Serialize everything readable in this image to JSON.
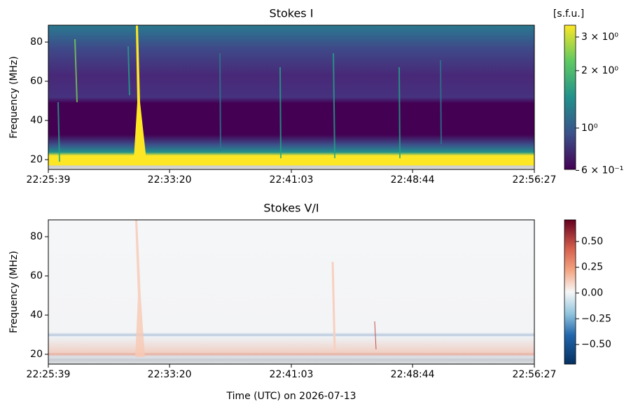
{
  "chart_data": [
    {
      "type": "heatmap",
      "title": "Stokes I",
      "ylabel": "Frequency (MHz)",
      "xlim": [
        "22:25:39",
        "22:56:27"
      ],
      "xticks": [
        "22:25:39",
        "22:33:20",
        "22:41:03",
        "22:48:44",
        "22:56:27"
      ],
      "ylim": [
        15,
        88.6
      ],
      "yticks": [
        20,
        40,
        60,
        80
      ],
      "colorbar": {
        "label": "[s.f.u.]",
        "colormap": "viridis",
        "scale": "log",
        "lim": [
          0.607,
          3.46
        ],
        "ticks": [
          {
            "value": 3,
            "label": "3 × 10⁰"
          },
          {
            "value": 2,
            "label": "2 × 10⁰"
          },
          {
            "value": 1,
            "label": "10⁰"
          },
          {
            "value": 0.6,
            "label": "6 × 10⁻¹"
          }
        ]
      }
    },
    {
      "type": "heatmap",
      "title": "Stokes V/I",
      "ylabel": "Frequency (MHz)",
      "xlabel": "Time (UTC) on 2026-07-13",
      "xlim": [
        "22:25:39",
        "22:56:27"
      ],
      "xticks": [
        "22:25:39",
        "22:33:20",
        "22:41:03",
        "22:48:44",
        "22:56:27"
      ],
      "ylim": [
        15,
        88.6
      ],
      "yticks": [
        20,
        40,
        60,
        80
      ],
      "colorbar": {
        "colormap": "RdBu_r",
        "scale": "linear",
        "lim": [
          -0.69,
          0.71
        ],
        "ticks": [
          {
            "value": 0.5,
            "label": "0.50"
          },
          {
            "value": 0.25,
            "label": "0.25"
          },
          {
            "value": 0,
            "label": "0.00"
          },
          {
            "value": -0.25,
            "label": "−0.25"
          },
          {
            "value": -0.5,
            "label": "−0.50"
          }
        ]
      }
    }
  ]
}
